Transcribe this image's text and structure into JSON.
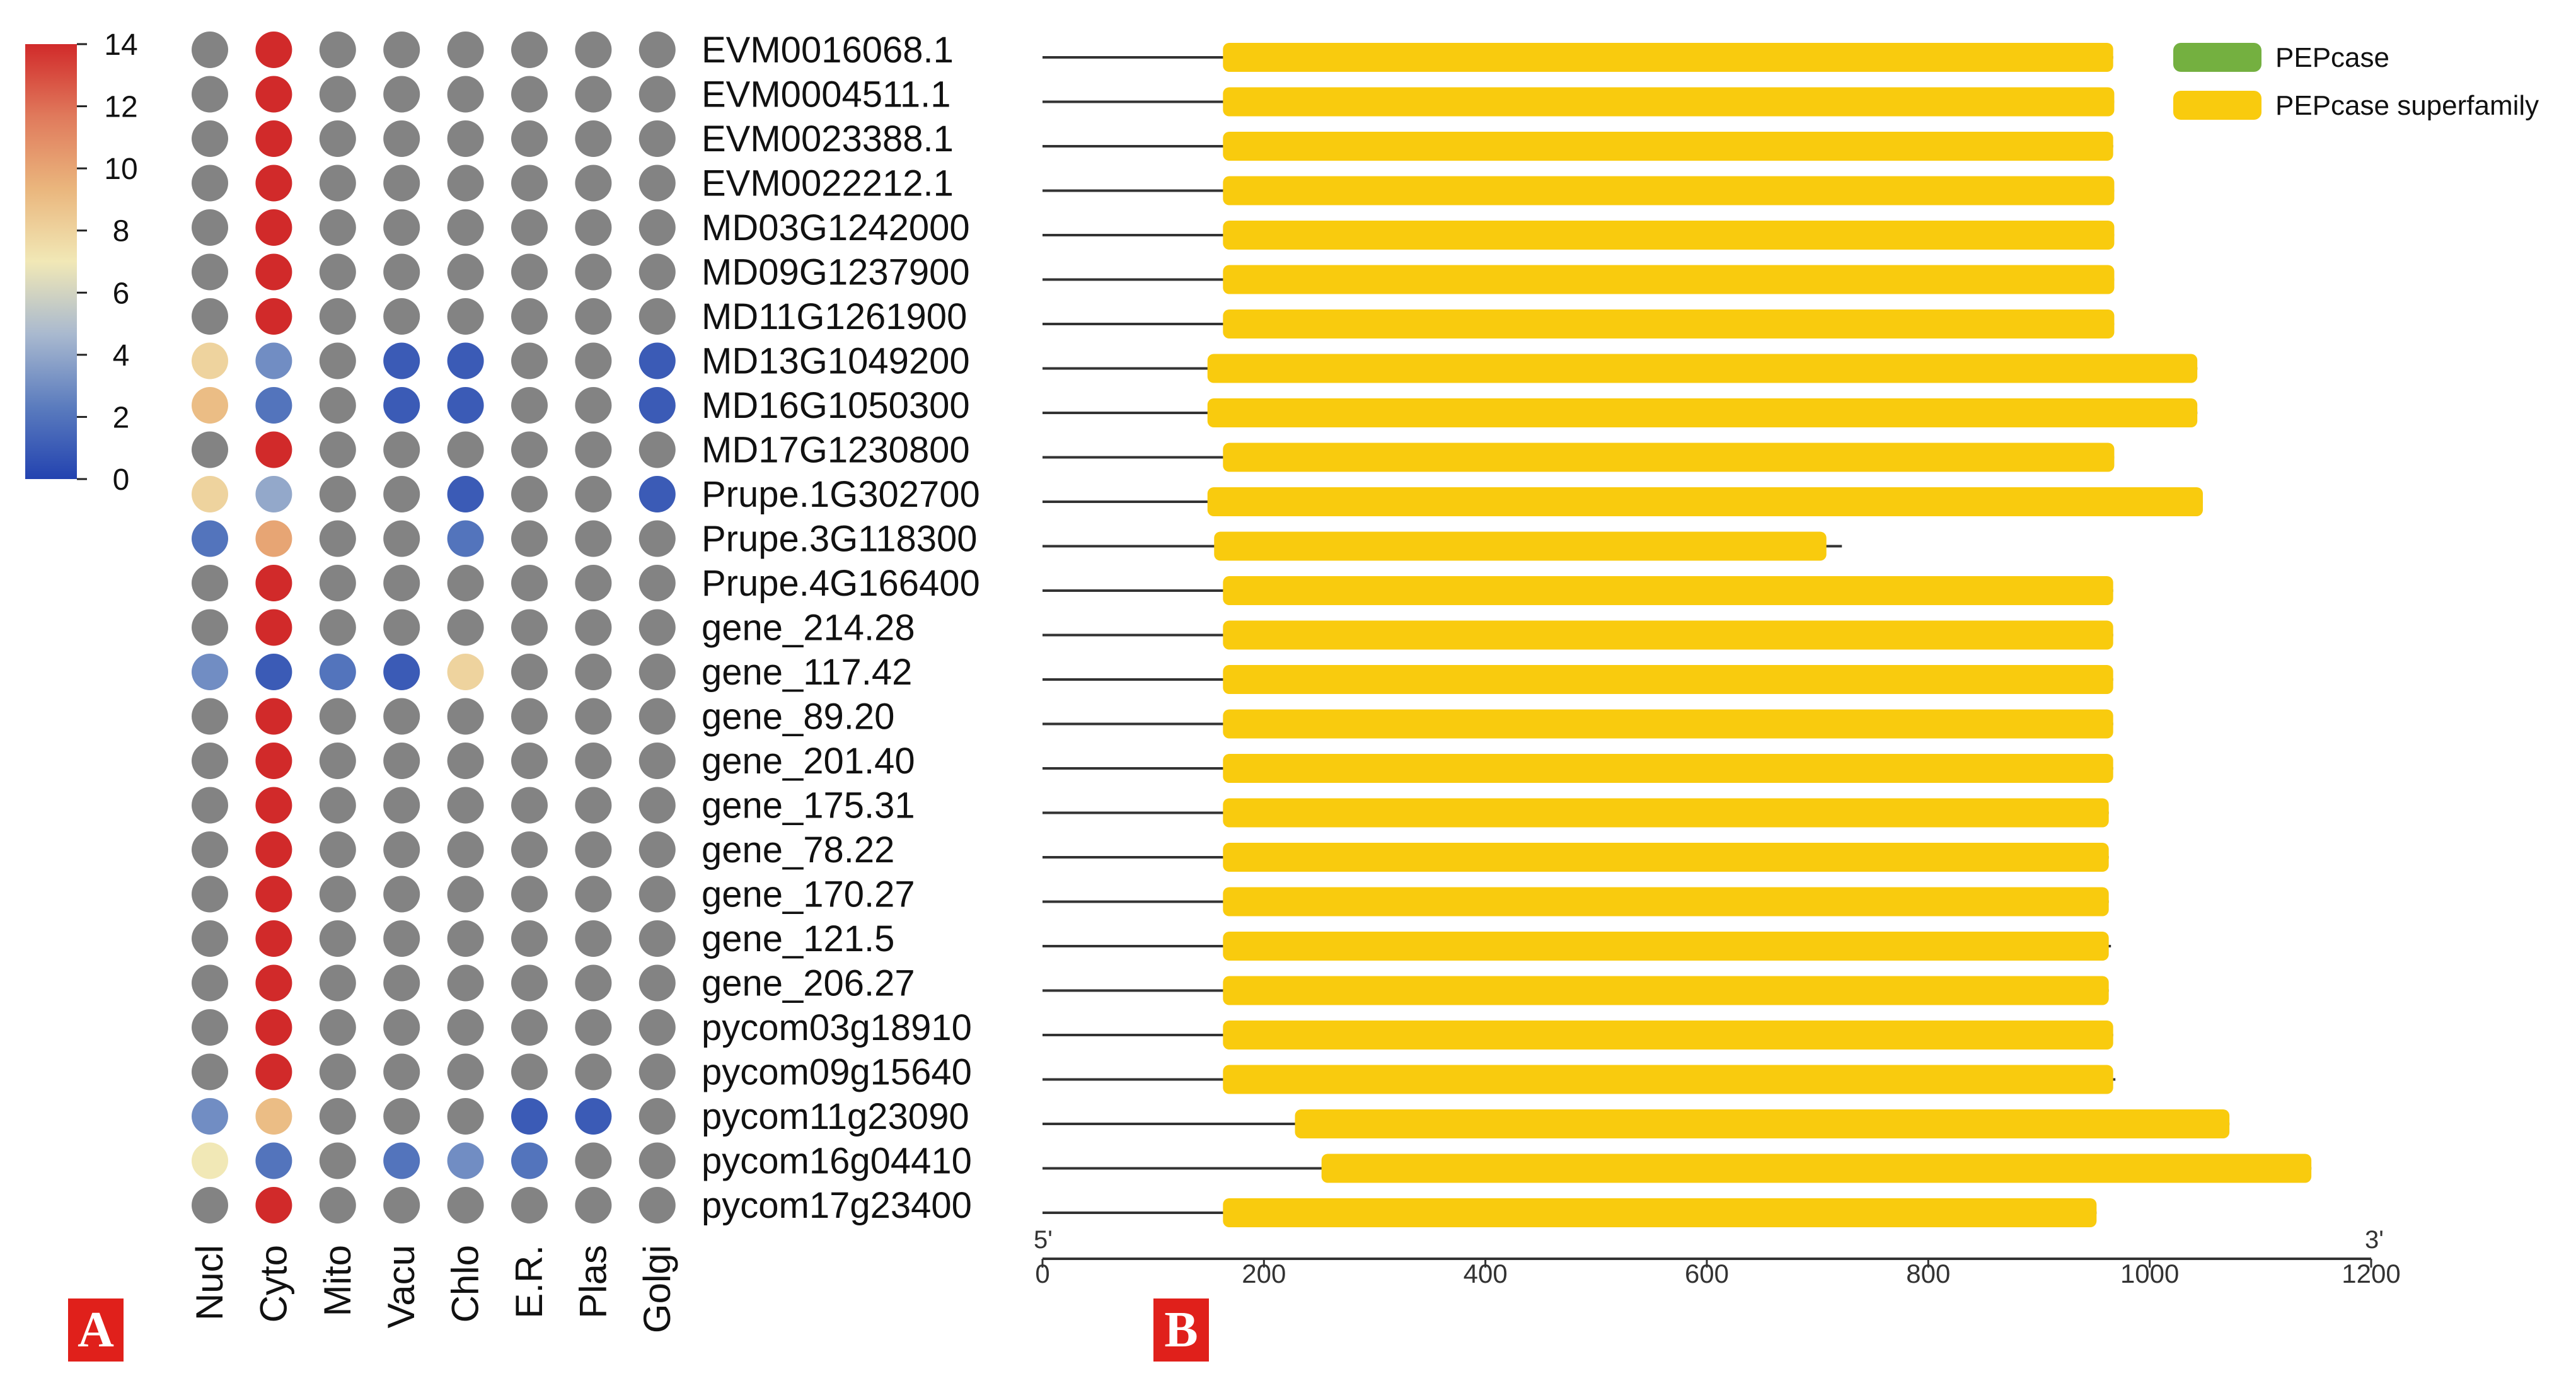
{
  "panels": {
    "a": "A",
    "b": "B"
  },
  "colors": {
    "gray": "#838383",
    "red": "#dc3232",
    "blue": "#2a56b8",
    "domain_yellow": "#f9cb0e",
    "domain_green": "#74b040",
    "scale": [
      "#2343b0",
      "#5b7cbe",
      "#a9b9cf",
      "#f1e8b6",
      "#eab67d",
      "#e07a5c",
      "#d12a2a"
    ]
  },
  "chart_data": [
    {
      "type": "heatmap",
      "colorbar": {
        "min": 0,
        "max": 14,
        "ticks": [
          0,
          2,
          4,
          6,
          8,
          10,
          12,
          14
        ]
      },
      "columns": [
        "Nucl",
        "Cyto",
        "Mito",
        "Vacu",
        "Chlo",
        "E.R.",
        "Plas",
        "Golgi"
      ],
      "rows": [
        "EVM0016068.1",
        "EVM0004511.1",
        "EVM0023388.1",
        "EVM0022212.1",
        "MD03G1242000",
        "MD09G1237900",
        "MD11G1261900",
        "MD13G1049200",
        "MD16G1050300",
        "MD17G1230800",
        "Prupe.1G302700",
        "Prupe.3G118300",
        "Prupe.4G166400",
        "gene_214.28",
        "gene_117.42",
        "gene_89.20",
        "gene_201.40",
        "gene_175.31",
        "gene_78.22",
        "gene_170.27",
        "gene_121.5",
        "gene_206.27",
        "pycom03g18910",
        "pycom09g15640",
        "pycom11g23090",
        "pycom16g04410",
        "pycom17g23400"
      ],
      "values": [
        [
          null,
          14,
          null,
          null,
          null,
          null,
          null,
          null
        ],
        [
          null,
          14,
          null,
          null,
          null,
          null,
          null,
          null
        ],
        [
          null,
          14,
          null,
          null,
          null,
          null,
          null,
          null
        ],
        [
          null,
          14,
          null,
          null,
          null,
          null,
          null,
          null
        ],
        [
          null,
          14,
          null,
          null,
          null,
          null,
          null,
          null
        ],
        [
          null,
          14,
          null,
          null,
          null,
          null,
          null,
          null
        ],
        [
          null,
          14,
          null,
          null,
          null,
          null,
          null,
          null
        ],
        [
          8,
          3,
          null,
          1,
          1,
          null,
          null,
          1
        ],
        [
          9,
          2,
          null,
          1,
          1,
          null,
          null,
          1
        ],
        [
          null,
          14,
          null,
          null,
          null,
          null,
          null,
          null
        ],
        [
          8,
          4,
          null,
          null,
          1,
          null,
          null,
          1
        ],
        [
          2,
          10,
          null,
          null,
          2,
          null,
          null,
          null
        ],
        [
          null,
          14,
          null,
          null,
          null,
          null,
          null,
          null
        ],
        [
          null,
          14,
          null,
          null,
          null,
          null,
          null,
          null
        ],
        [
          3,
          1,
          2,
          1,
          8,
          null,
          null,
          null
        ],
        [
          null,
          14,
          null,
          null,
          null,
          null,
          null,
          null
        ],
        [
          null,
          14,
          null,
          null,
          null,
          null,
          null,
          null
        ],
        [
          null,
          14,
          null,
          null,
          null,
          null,
          null,
          null
        ],
        [
          null,
          14,
          null,
          null,
          null,
          null,
          null,
          null
        ],
        [
          null,
          14,
          null,
          null,
          null,
          null,
          null,
          null
        ],
        [
          null,
          14,
          null,
          null,
          null,
          null,
          null,
          null
        ],
        [
          null,
          14,
          null,
          null,
          null,
          null,
          null,
          null
        ],
        [
          null,
          14,
          null,
          null,
          null,
          null,
          null,
          null
        ],
        [
          null,
          14,
          null,
          null,
          null,
          null,
          null,
          null
        ],
        [
          3,
          9,
          null,
          null,
          null,
          1,
          1,
          null
        ],
        [
          7,
          2,
          null,
          2,
          3,
          2,
          null,
          null
        ],
        [
          null,
          14,
          null,
          null,
          null,
          null,
          null,
          null
        ]
      ]
    },
    {
      "type": "bar",
      "orientation": "horizontal",
      "legend": [
        "PEPcase",
        "PEPcase superfamily"
      ],
      "legend_position": "top-right",
      "xlim": [
        0,
        1200
      ],
      "xticks": [
        0,
        200,
        400,
        600,
        800,
        1000,
        1200
      ],
      "axis_end_labels": {
        "start": "5'",
        "end": "3'"
      },
      "genes": [
        {
          "name": "EVM0016068.1",
          "length": 967,
          "domain": [
            163,
            967
          ]
        },
        {
          "name": "EVM0004511.1",
          "length": 968,
          "domain": [
            163,
            968
          ]
        },
        {
          "name": "EVM0023388.1",
          "length": 967,
          "domain": [
            163,
            967
          ]
        },
        {
          "name": "EVM0022212.1",
          "length": 968,
          "domain": [
            163,
            968
          ]
        },
        {
          "name": "MD03G1242000",
          "length": 968,
          "domain": [
            163,
            968
          ]
        },
        {
          "name": "MD09G1237900",
          "length": 968,
          "domain": [
            163,
            968
          ]
        },
        {
          "name": "MD11G1261900",
          "length": 968,
          "domain": [
            163,
            968
          ]
        },
        {
          "name": "MD13G1049200",
          "length": 1043,
          "domain": [
            149,
            1043
          ]
        },
        {
          "name": "MD16G1050300",
          "length": 1043,
          "domain": [
            149,
            1043
          ]
        },
        {
          "name": "MD17G1230800",
          "length": 968,
          "domain": [
            163,
            968
          ]
        },
        {
          "name": "Prupe.1G302700",
          "length": 1048,
          "domain": [
            149,
            1048
          ]
        },
        {
          "name": "Prupe.3G118300",
          "length": 722,
          "domain": [
            155,
            708
          ]
        },
        {
          "name": "Prupe.4G166400",
          "length": 967,
          "domain": [
            163,
            967
          ]
        },
        {
          "name": "gene_214.28",
          "length": 967,
          "domain": [
            163,
            967
          ]
        },
        {
          "name": "gene_117.42",
          "length": 967,
          "domain": [
            163,
            967
          ]
        },
        {
          "name": "gene_89.20",
          "length": 967,
          "domain": [
            163,
            967
          ]
        },
        {
          "name": "gene_201.40",
          "length": 967,
          "domain": [
            163,
            967
          ]
        },
        {
          "name": "gene_175.31",
          "length": 963,
          "domain": [
            163,
            963
          ]
        },
        {
          "name": "gene_78.22",
          "length": 963,
          "domain": [
            163,
            963
          ]
        },
        {
          "name": "gene_170.27",
          "length": 963,
          "domain": [
            163,
            963
          ]
        },
        {
          "name": "gene_121.5",
          "length": 965,
          "domain": [
            163,
            963
          ]
        },
        {
          "name": "gene_206.27",
          "length": 963,
          "domain": [
            163,
            963
          ]
        },
        {
          "name": "pycom03g18910",
          "length": 967,
          "domain": [
            163,
            967
          ]
        },
        {
          "name": "pycom09g15640",
          "length": 969,
          "domain": [
            163,
            967
          ]
        },
        {
          "name": "pycom11g23090",
          "length": 1072,
          "domain": [
            228,
            1072
          ]
        },
        {
          "name": "pycom16g04410",
          "length": 1146,
          "domain": [
            252,
            1146
          ]
        },
        {
          "name": "pycom17g23400",
          "length": 952,
          "domain": [
            163,
            952
          ]
        }
      ]
    }
  ]
}
